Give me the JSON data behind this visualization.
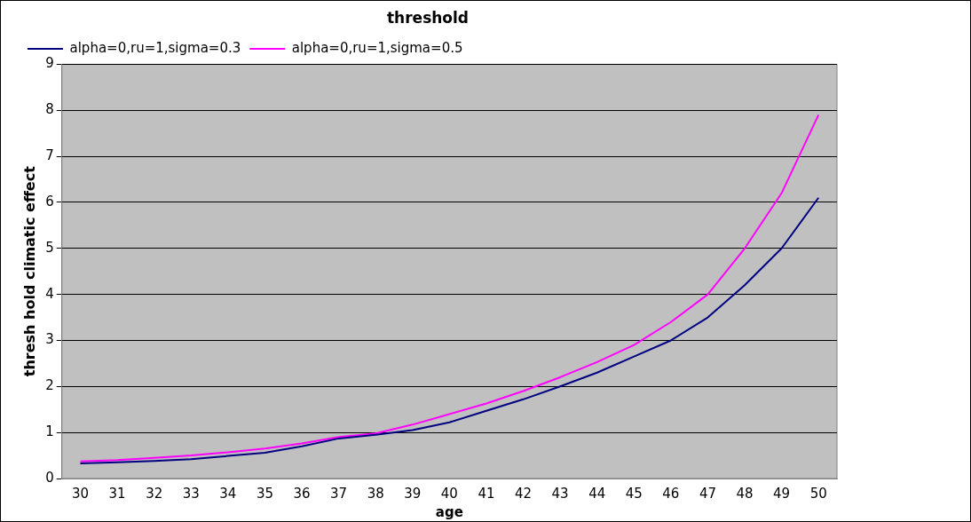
{
  "chart_data": {
    "type": "line",
    "title": "threshold",
    "xlabel": "age",
    "ylabel": "thresh hold climatic effect",
    "categories": [
      "30",
      "31",
      "32",
      "33",
      "34",
      "35",
      "36",
      "37",
      "38",
      "39",
      "40",
      "41",
      "42",
      "43",
      "44",
      "45",
      "46",
      "47",
      "48",
      "49",
      "50"
    ],
    "series": [
      {
        "name": "alpha=0,ru=1,sigma=0.3",
        "color": "#000080",
        "values": [
          0.33,
          0.35,
          0.38,
          0.42,
          0.49,
          0.56,
          0.7,
          0.87,
          0.95,
          1.05,
          1.22,
          1.47,
          1.72,
          2.0,
          2.3,
          2.65,
          3.0,
          3.5,
          4.2,
          5.0,
          6.1
        ]
      },
      {
        "name": "alpha=0,ru=1,sigma=0.5",
        "color": "#ff00ff",
        "values": [
          0.37,
          0.4,
          0.45,
          0.5,
          0.57,
          0.65,
          0.76,
          0.9,
          0.98,
          1.17,
          1.4,
          1.63,
          1.9,
          2.2,
          2.53,
          2.9,
          3.4,
          4.0,
          5.0,
          6.2,
          7.9
        ]
      }
    ],
    "ylim": [
      0,
      9
    ],
    "yticks": [
      0,
      1,
      2,
      3,
      4,
      5,
      6,
      7,
      8,
      9
    ],
    "grid": "y",
    "legend": "top left",
    "marker": "none",
    "line_style": "solid"
  }
}
